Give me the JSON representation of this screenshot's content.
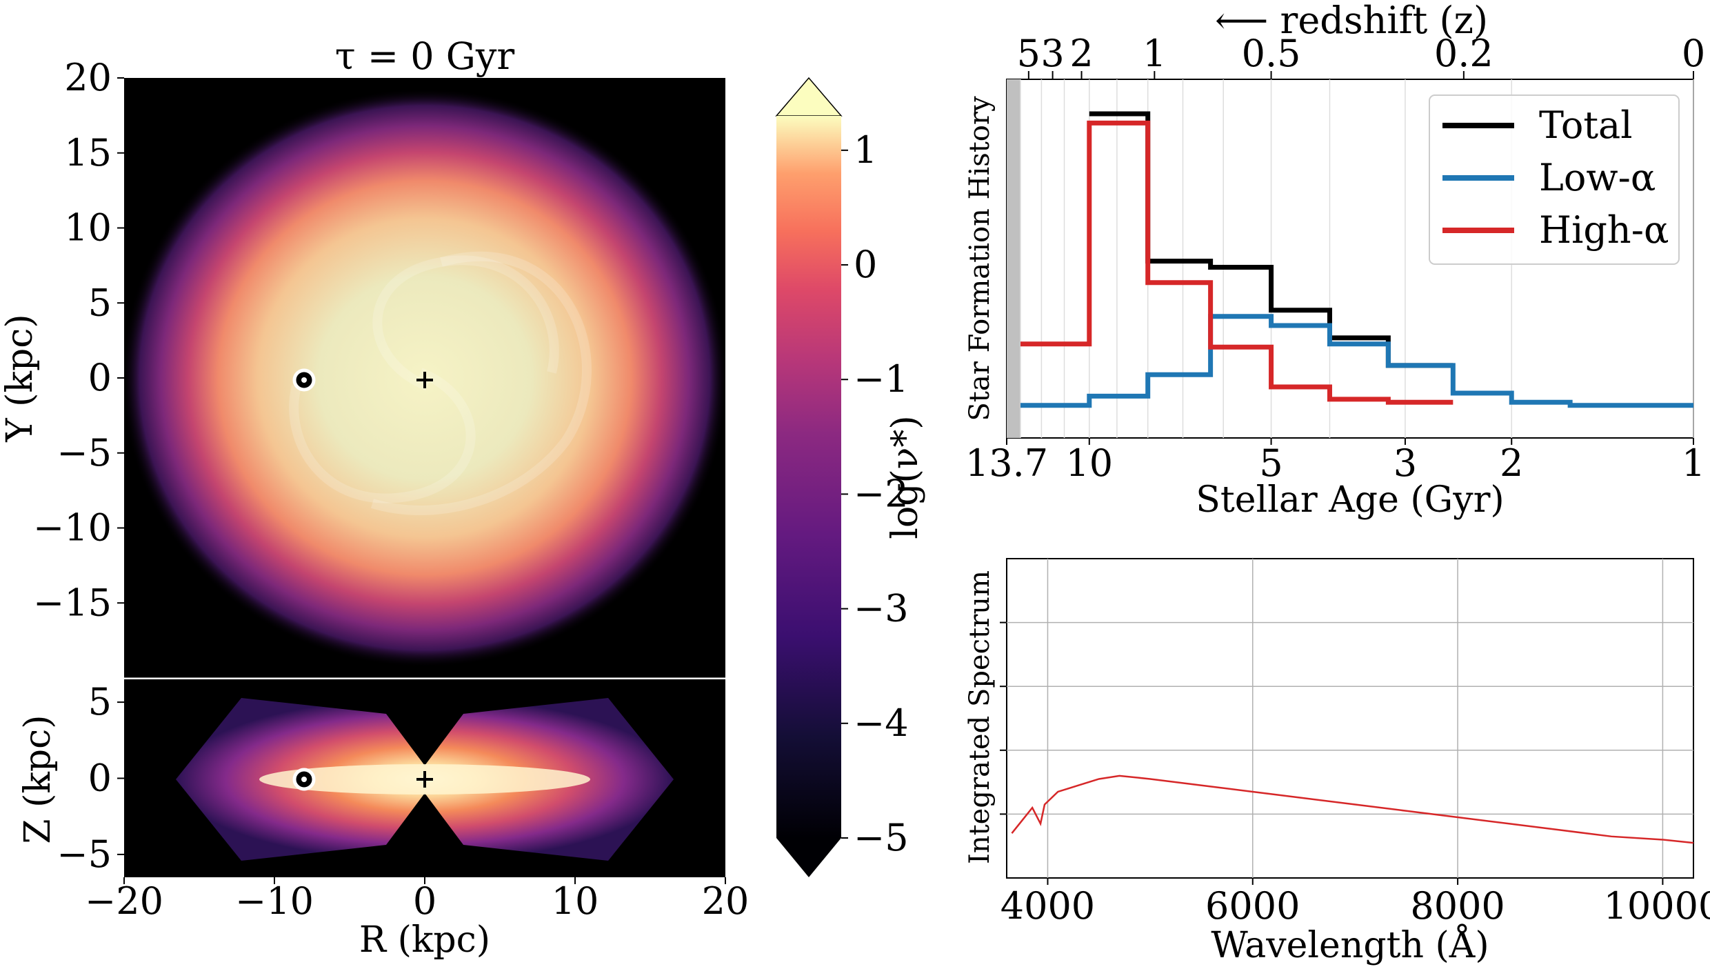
{
  "chart_data": [
    {
      "type": "heatmap",
      "title": "τ = 0 Gyr",
      "panel": "face-on",
      "xlim": [
        -20,
        20
      ],
      "ylim": [
        -20,
        20
      ],
      "ylabel": "Y (kpc)",
      "yticks": [
        "20",
        "15",
        "10",
        "5",
        "0",
        "−5",
        "−10",
        "−15"
      ],
      "yticks_values": [
        20,
        15,
        10,
        5,
        0,
        -5,
        -10,
        -15
      ],
      "markers": [
        {
          "name": "sun-marker",
          "x": -8.2,
          "y": 0
        },
        {
          "name": "galactic-center-marker",
          "x": 0,
          "y": 0
        }
      ]
    },
    {
      "type": "heatmap",
      "panel": "edge-on",
      "xlim": [
        -20,
        20
      ],
      "ylim": [
        -6.5,
        6.5
      ],
      "xlabel": "R (kpc)",
      "ylabel": "Z (kpc)",
      "xticks": [
        "−20",
        "−10",
        "0",
        "10",
        "20"
      ],
      "xticks_values": [
        -20,
        -10,
        0,
        10,
        20
      ],
      "yticks": [
        "5",
        "0",
        "−5"
      ],
      "yticks_values": [
        5,
        0,
        -5
      ],
      "markers": [
        {
          "name": "sun-marker",
          "x": -8.2,
          "y": 0
        },
        {
          "name": "galactic-center-marker",
          "x": 0,
          "y": 0
        }
      ]
    },
    {
      "type": "colorbar",
      "label": "log(ν*)",
      "range": [
        -5,
        1.3
      ],
      "ticks": [
        "1",
        "0",
        "−1",
        "−2",
        "−3",
        "−4",
        "−5"
      ],
      "ticks_values": [
        1,
        0,
        -1,
        -2,
        -3,
        -4,
        -5
      ],
      "colormap": "magma",
      "extend": "both"
    },
    {
      "type": "line",
      "step": true,
      "xlabel": "Stellar Age (Gyr)",
      "ylabel": "Star Formation History",
      "x_scale": "log",
      "x_inverted": true,
      "xlim": [
        13.7,
        1
      ],
      "xticks": [
        "13.7",
        "10",
        "5",
        "3",
        "2",
        "1"
      ],
      "xticks_values": [
        13.7,
        10,
        5,
        3,
        2,
        1
      ],
      "top_axis_label": "⟵ redshift (z)",
      "top_ticks": [
        "5",
        "3",
        "2",
        "1",
        "0.5",
        "0.2",
        "0"
      ],
      "top_ticks_values": [
        5,
        3,
        2,
        1,
        0.5,
        0.2,
        0
      ],
      "yticks_shown": false,
      "grid": "vertical",
      "legend": "top-right",
      "shaded_region_gyr": [
        13.7,
        13.0
      ],
      "bin_edges_gyr": [
        13.0,
        10.0,
        8.0,
        6.3,
        5.0,
        4.0,
        3.2,
        2.5,
        2.0,
        1.6,
        1.0
      ],
      "series": [
        {
          "name": "Total",
          "color": "#000000",
          "values": [
            null,
            1.0,
            0.52,
            0.5,
            0.36,
            0.27,
            0.18,
            null,
            null,
            null
          ]
        },
        {
          "name": "Low-α",
          "color": "#1f77b4",
          "values": [
            0.05,
            0.08,
            0.15,
            0.34,
            0.31,
            0.25,
            0.18,
            0.09,
            0.06,
            0.05
          ]
        },
        {
          "name": "High-α",
          "color": "#d62728",
          "values": [
            0.25,
            0.97,
            0.45,
            0.24,
            0.11,
            0.07,
            0.06,
            null,
            null,
            null
          ]
        }
      ]
    },
    {
      "type": "line",
      "xlabel": "Wavelength (Å)",
      "ylabel": "Integrated Spectrum",
      "xlim": [
        3600,
        10300
      ],
      "xticks": [
        "4000",
        "6000",
        "8000",
        "10000"
      ],
      "xticks_values": [
        4000,
        6000,
        8000,
        10000
      ],
      "yticks_shown": false,
      "grid": true,
      "series": [
        {
          "color": "#d62728",
          "x": [
            3650,
            3750,
            3850,
            3930,
            3970,
            4100,
            4300,
            4500,
            4700,
            5000,
            5500,
            6000,
            6500,
            7000,
            7500,
            8000,
            8500,
            9000,
            9500,
            10000,
            10300
          ],
          "y": [
            0.14,
            0.18,
            0.22,
            0.17,
            0.23,
            0.27,
            0.29,
            0.31,
            0.32,
            0.31,
            0.29,
            0.27,
            0.25,
            0.23,
            0.21,
            0.19,
            0.17,
            0.15,
            0.13,
            0.12,
            0.11
          ]
        }
      ]
    }
  ]
}
